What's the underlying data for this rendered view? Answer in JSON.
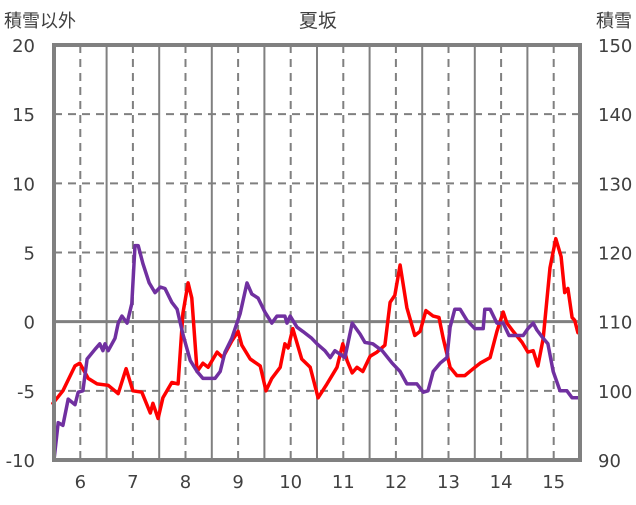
{
  "chart_data": {
    "type": "line",
    "title": "夏坂",
    "ylabel_left": "積雪以外",
    "ylabel_right": "積雪",
    "xlim": [
      5.5,
      15.5
    ],
    "ylim_left": [
      -10,
      20
    ],
    "ylim_right": [
      90,
      150
    ],
    "x_ticks": [
      "6",
      "7",
      "8",
      "9",
      "10",
      "11",
      "12",
      "13",
      "14",
      "15"
    ],
    "y_ticks_left": [
      "20",
      "15",
      "10",
      "5",
      "0",
      "-5",
      "-10"
    ],
    "y_ticks_right": [
      "150",
      "140",
      "130",
      "120",
      "110",
      "100",
      "90"
    ],
    "grid": true,
    "series": [
      {
        "name": "積雪以外",
        "axis": "left",
        "color": "#ff0000",
        "x": [
          5.48,
          5.67,
          5.9,
          5.99,
          6.15,
          6.32,
          6.53,
          6.72,
          6.87,
          7.0,
          7.17,
          7.33,
          7.38,
          7.48,
          7.57,
          7.74,
          7.86,
          7.95,
          8.05,
          8.12,
          8.22,
          8.33,
          8.43,
          8.6,
          8.71,
          8.88,
          9.0,
          9.07,
          9.23,
          9.42,
          9.53,
          9.64,
          9.8,
          9.89,
          9.95,
          10.04,
          10.21,
          10.37,
          10.52,
          10.69,
          10.88,
          10.99,
          11.07,
          11.17,
          11.26,
          11.37,
          11.51,
          11.64,
          11.79,
          11.89,
          11.98,
          12.08,
          12.21,
          12.36,
          12.46,
          12.57,
          12.71,
          12.82,
          12.9,
          13.03,
          13.16,
          13.31,
          13.47,
          13.6,
          13.79,
          13.92,
          14.04,
          14.11,
          14.23,
          14.4,
          14.51,
          14.61,
          14.7,
          14.8,
          14.93,
          15.04,
          15.14,
          15.21,
          15.27,
          15.35,
          15.4,
          15.46
        ],
        "y": [
          -5.9,
          -5.0,
          -3.2,
          -3.0,
          -4.1,
          -4.5,
          -4.6,
          -5.2,
          -3.4,
          -5.0,
          -5.1,
          -6.6,
          -5.9,
          -7.0,
          -5.5,
          -4.4,
          -4.5,
          0.6,
          2.8,
          1.7,
          -3.6,
          -3.0,
          -3.3,
          -2.2,
          -2.6,
          -1.4,
          -0.7,
          -1.7,
          -2.7,
          -3.2,
          -5.0,
          -4.1,
          -3.3,
          -1.6,
          -1.9,
          -0.5,
          -2.7,
          -3.3,
          -5.5,
          -4.5,
          -3.3,
          -1.6,
          -2.8,
          -3.7,
          -3.3,
          -3.6,
          -2.5,
          -2.2,
          -1.7,
          1.4,
          1.9,
          4.1,
          1.0,
          -1.0,
          -0.7,
          0.8,
          0.4,
          0.3,
          -1.2,
          -3.3,
          -3.9,
          -3.9,
          -3.4,
          -3.0,
          -2.6,
          -0.7,
          0.7,
          -0.1,
          -0.7,
          -1.5,
          -2.2,
          -2.1,
          -3.2,
          -1.2,
          3.9,
          6.0,
          4.7,
          2.1,
          2.4,
          0.3,
          0.1,
          -0.8
        ]
      },
      {
        "name": "積雪",
        "axis": "right",
        "color": "#7030a0",
        "x": [
          5.5,
          5.58,
          5.67,
          5.77,
          5.9,
          5.96,
          6.05,
          6.13,
          6.28,
          6.37,
          6.43,
          6.47,
          6.53,
          6.66,
          6.72,
          6.79,
          6.89,
          6.98,
          7.04,
          7.1,
          7.19,
          7.31,
          7.42,
          7.52,
          7.61,
          7.74,
          7.84,
          7.95,
          8.09,
          8.22,
          8.33,
          8.56,
          8.66,
          8.75,
          8.88,
          9.04,
          9.17,
          9.26,
          9.38,
          9.51,
          9.64,
          9.74,
          9.89,
          9.93,
          9.99,
          10.12,
          10.23,
          10.4,
          10.5,
          10.65,
          10.75,
          10.84,
          11.03,
          11.17,
          11.32,
          11.41,
          11.56,
          11.74,
          11.93,
          12.08,
          12.21,
          12.4,
          12.52,
          12.61,
          12.71,
          12.84,
          12.97,
          13.03,
          13.12,
          13.22,
          13.35,
          13.5,
          13.66,
          13.69,
          13.79,
          13.92,
          14.04,
          14.15,
          14.42,
          14.51,
          14.61,
          14.68,
          14.8,
          14.89,
          14.99,
          15.12,
          15.25,
          15.35,
          15.46
        ],
        "y": [
          90.0,
          95.4,
          95.0,
          98.8,
          98.0,
          99.8,
          100.0,
          104.6,
          106.0,
          106.8,
          105.8,
          106.8,
          105.8,
          107.6,
          109.8,
          110.8,
          109.8,
          112.6,
          121.0,
          121.0,
          118.4,
          115.6,
          114.2,
          115.0,
          114.8,
          112.8,
          111.8,
          108.2,
          104.4,
          102.8,
          101.8,
          101.8,
          102.8,
          105.6,
          107.6,
          111.2,
          115.6,
          114.0,
          113.4,
          111.4,
          109.8,
          110.8,
          110.8,
          109.8,
          110.8,
          109.2,
          108.6,
          107.6,
          106.8,
          105.8,
          104.8,
          105.8,
          104.8,
          109.8,
          108.2,
          107.0,
          106.8,
          105.8,
          104.0,
          102.8,
          101.0,
          101.0,
          99.8,
          100.0,
          102.8,
          104.0,
          104.8,
          109.2,
          111.8,
          111.8,
          110.2,
          109.0,
          109.0,
          111.8,
          111.8,
          109.8,
          109.8,
          108.0,
          108.0,
          109.0,
          109.8,
          108.8,
          107.6,
          106.8,
          102.8,
          100.0,
          100.0,
          99.0,
          99.0
        ]
      }
    ]
  }
}
